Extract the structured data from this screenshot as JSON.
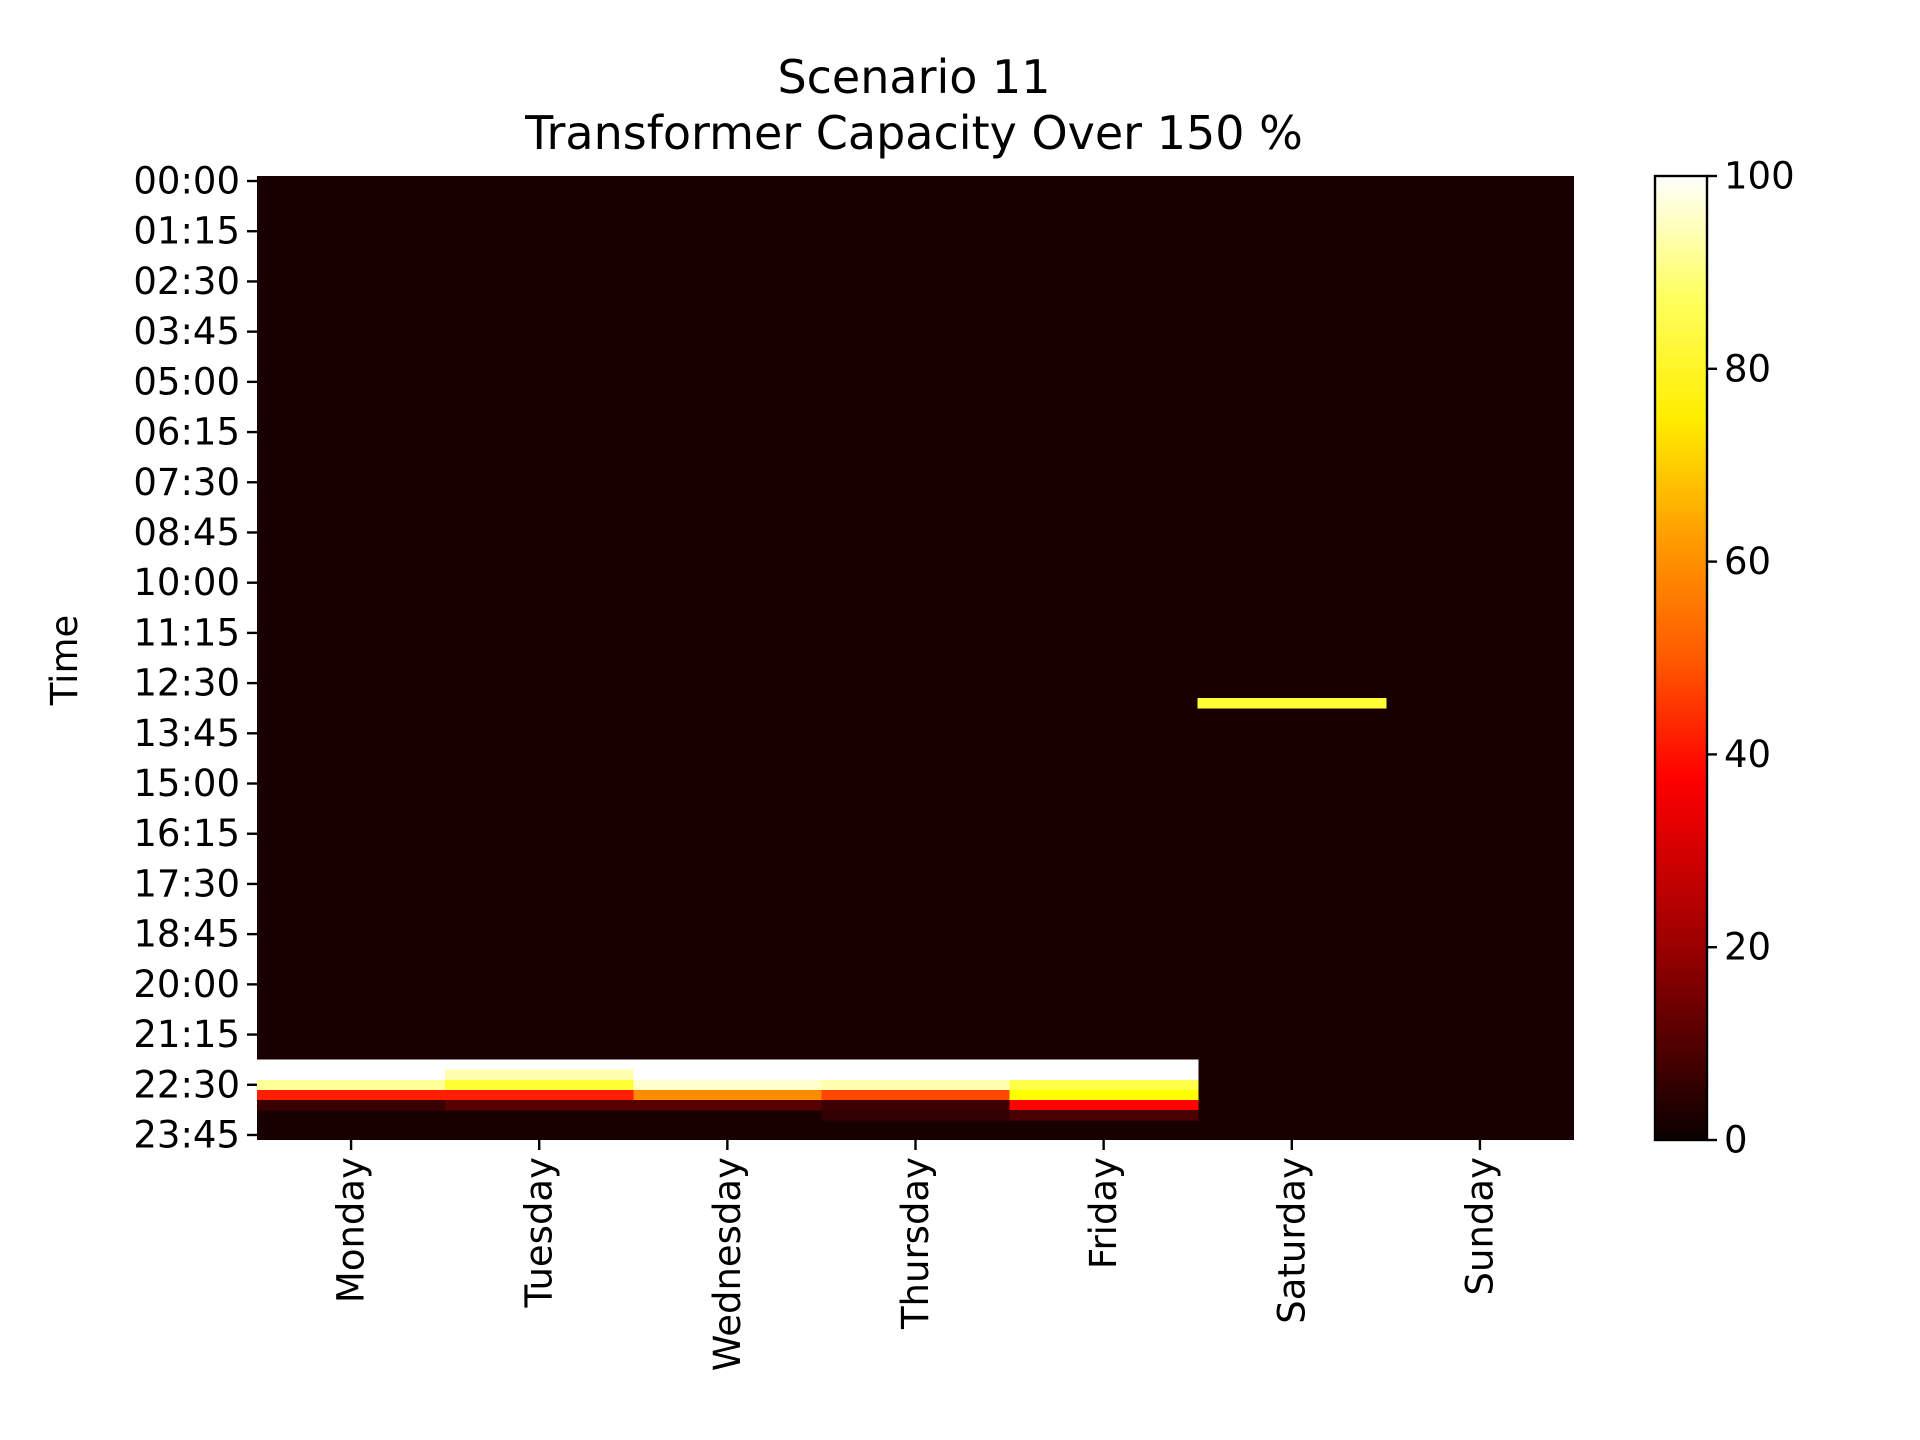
{
  "chart_data": {
    "type": "heatmap",
    "title": "Scenario 11",
    "subtitle": "Transformer Capacity Over 150 %",
    "ylabel": "Time",
    "xlabel": "",
    "x_categories": [
      "Monday",
      "Tuesday",
      "Wednesday",
      "Thursday",
      "Friday",
      "Saturday",
      "Sunday"
    ],
    "y_tick_labels": [
      "00:00",
      "01:15",
      "02:30",
      "03:45",
      "05:00",
      "06:15",
      "07:30",
      "08:45",
      "10:00",
      "11:15",
      "12:30",
      "13:45",
      "15:00",
      "16:15",
      "17:30",
      "18:45",
      "20:00",
      "21:15",
      "22:30",
      "23:45"
    ],
    "y_range": [
      "00:00",
      "23:45"
    ],
    "time_resolution_minutes": 15,
    "rows": 96,
    "colormap": "hot",
    "color_range": [
      0,
      100
    ],
    "colorbar_ticks": [
      0,
      20,
      40,
      60,
      80,
      100
    ],
    "background_value": 0,
    "nonzero_cells": [
      {
        "day": "Monday",
        "time": "22:00",
        "value": 100
      },
      {
        "day": "Monday",
        "time": "22:15",
        "value": 100
      },
      {
        "day": "Monday",
        "time": "22:30",
        "value": 90
      },
      {
        "day": "Monday",
        "time": "22:45",
        "value": 42
      },
      {
        "day": "Monday",
        "time": "23:00",
        "value": 5
      },
      {
        "day": "Tuesday",
        "time": "22:00",
        "value": 100
      },
      {
        "day": "Tuesday",
        "time": "22:15",
        "value": 92
      },
      {
        "day": "Tuesday",
        "time": "22:30",
        "value": 80
      },
      {
        "day": "Tuesday",
        "time": "22:45",
        "value": 42
      },
      {
        "day": "Tuesday",
        "time": "23:00",
        "value": 10
      },
      {
        "day": "Wednesday",
        "time": "22:00",
        "value": 100
      },
      {
        "day": "Wednesday",
        "time": "22:15",
        "value": 100
      },
      {
        "day": "Wednesday",
        "time": "22:30",
        "value": 95
      },
      {
        "day": "Wednesday",
        "time": "22:45",
        "value": 58
      },
      {
        "day": "Wednesday",
        "time": "23:00",
        "value": 10
      },
      {
        "day": "Thursday",
        "time": "22:00",
        "value": 100
      },
      {
        "day": "Thursday",
        "time": "22:15",
        "value": 100
      },
      {
        "day": "Thursday",
        "time": "22:30",
        "value": 92
      },
      {
        "day": "Thursday",
        "time": "22:45",
        "value": 48
      },
      {
        "day": "Thursday",
        "time": "23:00",
        "value": 6
      },
      {
        "day": "Thursday",
        "time": "23:15",
        "value": 4
      },
      {
        "day": "Friday",
        "time": "22:00",
        "value": 100
      },
      {
        "day": "Friday",
        "time": "22:15",
        "value": 100
      },
      {
        "day": "Friday",
        "time": "22:30",
        "value": 82
      },
      {
        "day": "Friday",
        "time": "22:45",
        "value": 75
      },
      {
        "day": "Friday",
        "time": "23:00",
        "value": 38
      },
      {
        "day": "Friday",
        "time": "23:15",
        "value": 8
      },
      {
        "day": "Saturday",
        "time": "13:00",
        "value": 80
      }
    ]
  }
}
